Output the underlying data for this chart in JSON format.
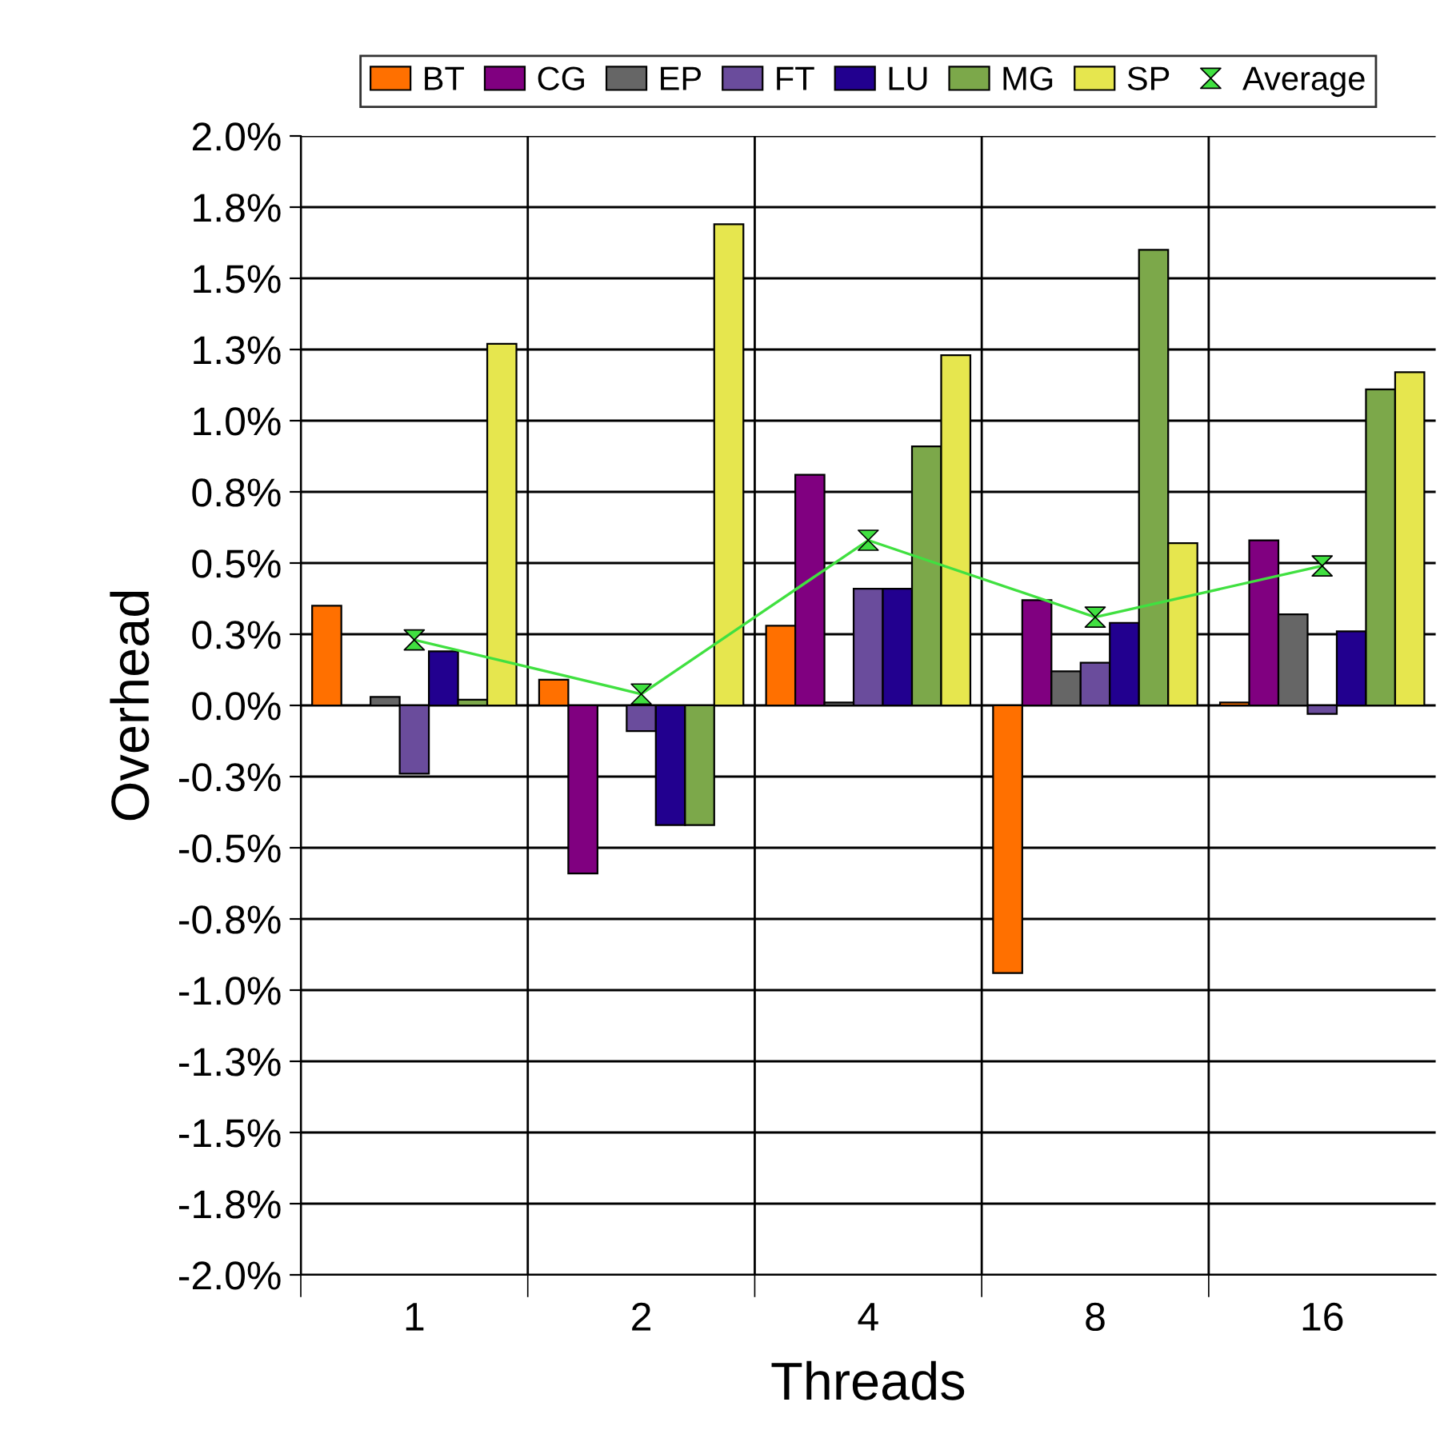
{
  "chart_data": {
    "type": "bar",
    "xlabel": "Threads",
    "ylabel": "Overhead",
    "categories": [
      "1",
      "2",
      "4",
      "8",
      "16"
    ],
    "series": [
      {
        "name": "BT",
        "color": "#ff7000",
        "values": [
          0.35,
          0.09,
          0.28,
          -0.94,
          0.01
        ]
      },
      {
        "name": "CG",
        "color": "#800080",
        "values": [
          null,
          -0.59,
          0.81,
          0.37,
          0.58
        ]
      },
      {
        "name": "EP",
        "color": "#666666",
        "values": [
          0.03,
          null,
          0.01,
          0.12,
          0.32
        ]
      },
      {
        "name": "FT",
        "color": "#6a4c9c",
        "values": [
          -0.24,
          -0.09,
          0.41,
          0.15,
          -0.03
        ]
      },
      {
        "name": "LU",
        "color": "#22008f",
        "values": [
          0.19,
          -0.42,
          0.41,
          0.29,
          0.26
        ]
      },
      {
        "name": "MG",
        "color": "#7ca84a",
        "values": [
          0.02,
          -0.42,
          0.91,
          1.6,
          1.11
        ]
      },
      {
        "name": "SP",
        "color": "#e6e64e",
        "values": [
          1.27,
          1.69,
          1.23,
          0.57,
          1.17
        ]
      },
      {
        "name": "Average",
        "type": "line",
        "color": "#40e040",
        "marker": "diamond",
        "values": [
          0.23,
          0.04,
          0.58,
          0.31,
          0.49
        ]
      }
    ],
    "ylim": [
      -2.0,
      2.0
    ],
    "yticks": [
      {
        "value": -2.0,
        "label": "-2.0%"
      },
      {
        "value": -1.75,
        "label": "-1.8%"
      },
      {
        "value": -1.5,
        "label": "-1.5%"
      },
      {
        "value": -1.25,
        "label": "-1.3%"
      },
      {
        "value": -1.0,
        "label": "-1.0%"
      },
      {
        "value": -0.75,
        "label": "-0.8%"
      },
      {
        "value": -0.5,
        "label": "-0.5%"
      },
      {
        "value": -0.25,
        "label": "-0.3%"
      },
      {
        "value": 0.0,
        "label": "0.0%"
      },
      {
        "value": 0.25,
        "label": "0.3%"
      },
      {
        "value": 0.5,
        "label": "0.5%"
      },
      {
        "value": 0.75,
        "label": "0.8%"
      },
      {
        "value": 1.0,
        "label": "1.0%"
      },
      {
        "value": 1.25,
        "label": "1.3%"
      },
      {
        "value": 1.5,
        "label": "1.5%"
      },
      {
        "value": 1.75,
        "label": "1.8%"
      },
      {
        "value": 2.0,
        "label": "2.0%"
      }
    ],
    "grid": true,
    "legend": "top"
  }
}
